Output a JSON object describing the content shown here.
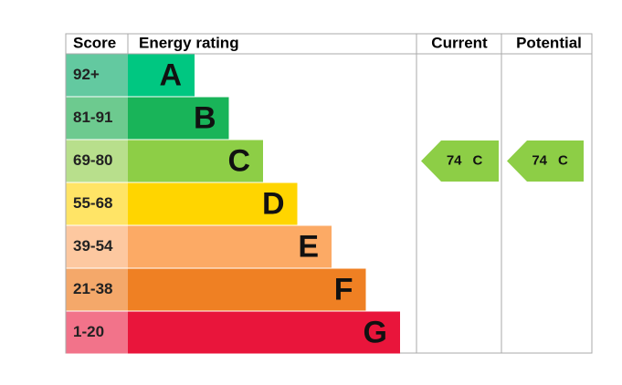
{
  "header": {
    "score": "Score",
    "rating": "Energy rating",
    "current": "Current",
    "potential": "Potential"
  },
  "bands": [
    {
      "score": "92+",
      "letter": "A",
      "color": "#00c781",
      "score_color": "#63c9a0"
    },
    {
      "score": "81-91",
      "letter": "B",
      "color": "#19b459",
      "score_color": "#6dca8f"
    },
    {
      "score": "69-80",
      "letter": "C",
      "color": "#8dce46",
      "score_color": "#b8df8c"
    },
    {
      "score": "55-68",
      "letter": "D",
      "color": "#ffd500",
      "score_color": "#ffe466"
    },
    {
      "score": "39-54",
      "letter": "E",
      "color": "#fcaa65",
      "score_color": "#fdc8a0"
    },
    {
      "score": "21-38",
      "letter": "F",
      "color": "#ef8023",
      "score_color": "#f4a86a"
    },
    {
      "score": "1-20",
      "letter": "G",
      "color": "#e9153b",
      "score_color": "#f2738a"
    }
  ],
  "current": {
    "value": 74,
    "band": "C"
  },
  "potential": {
    "value": 74,
    "band": "C"
  }
}
